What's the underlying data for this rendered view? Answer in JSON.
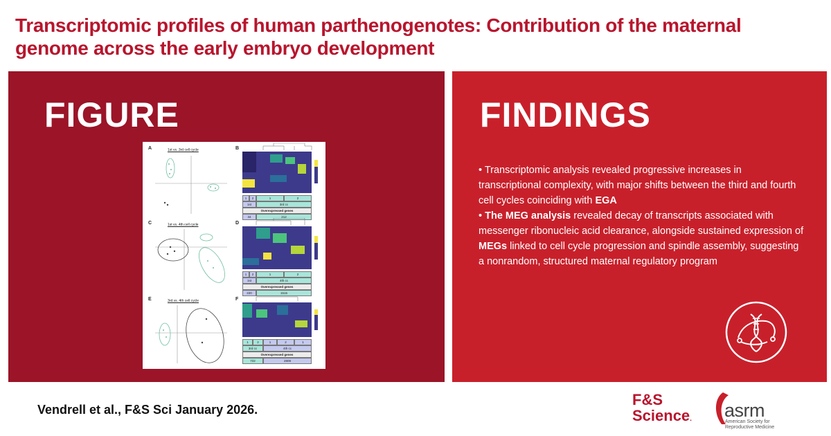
{
  "header": {
    "title_line1": "Transcriptomic profiles of human parthenogenotes: Contribution of the maternal",
    "title_line2": "genome across the early embryo development"
  },
  "figure_panel": {
    "heading": "FIGURE",
    "thumbnail": {
      "panels": [
        {
          "letter": "A",
          "subtitle": "1st vs. 3rd cell cycle"
        },
        {
          "letter": "B"
        },
        {
          "letter": "C",
          "subtitle": "1st vs. 4th cell cycle"
        },
        {
          "letter": "D"
        },
        {
          "letter": "E",
          "subtitle": "3rd vs. 4th cell cycle"
        },
        {
          "letter": "F"
        }
      ],
      "tables": [
        {
          "clusters": [
            "1",
            "2",
            "1",
            "2"
          ],
          "stages": [
            "1st",
            "3rd cc"
          ],
          "label": "Overexpressed genes",
          "counts": [
            "34",
            "212"
          ]
        },
        {
          "clusters": [
            "1",
            "2",
            "1",
            "2"
          ],
          "stages": [
            "1st",
            "4th cc"
          ],
          "label": "Overexpressed genes",
          "counts": [
            "220",
            "1515"
          ]
        },
        {
          "clusters": [
            "1",
            "2",
            "1",
            "2",
            "1"
          ],
          "stages": [
            "3rd cc",
            "4th cc"
          ],
          "label": "Overexpressed genes",
          "counts": [
            "722",
            "2809"
          ]
        }
      ]
    }
  },
  "findings_panel": {
    "heading": "FINDINGS",
    "bullet1": {
      "prefix": "• Transcriptomic analysis revealed progressive increases in transcriptional complexity, with major shifts between the third and fourth cell cycles coinciding with ",
      "bold": "EGA"
    },
    "bullet2": {
      "bold_start": "The MEG analysis",
      "middle": " revealed decay of transcripts associated with messenger ribonucleic acid clearance, alongside sustained expression of ",
      "bold_mid": "MEGs",
      "end": " linked to cell cycle progression and spindle assembly, suggesting a nonrandom, structured maternal regulatory program"
    },
    "icon": "dna-cell-icon"
  },
  "footer": {
    "citation": "Vendrell et al., F&S Sci January 2026.",
    "fs_logo_line1": "F&S",
    "fs_logo_line2": "Science",
    "asrm_logo": "asrm",
    "asrm_sub": "American Society for Reproductive Medicine"
  },
  "colors": {
    "title": "#b8152d",
    "left_panel": "#9b1428",
    "right_panel": "#c8202b"
  }
}
